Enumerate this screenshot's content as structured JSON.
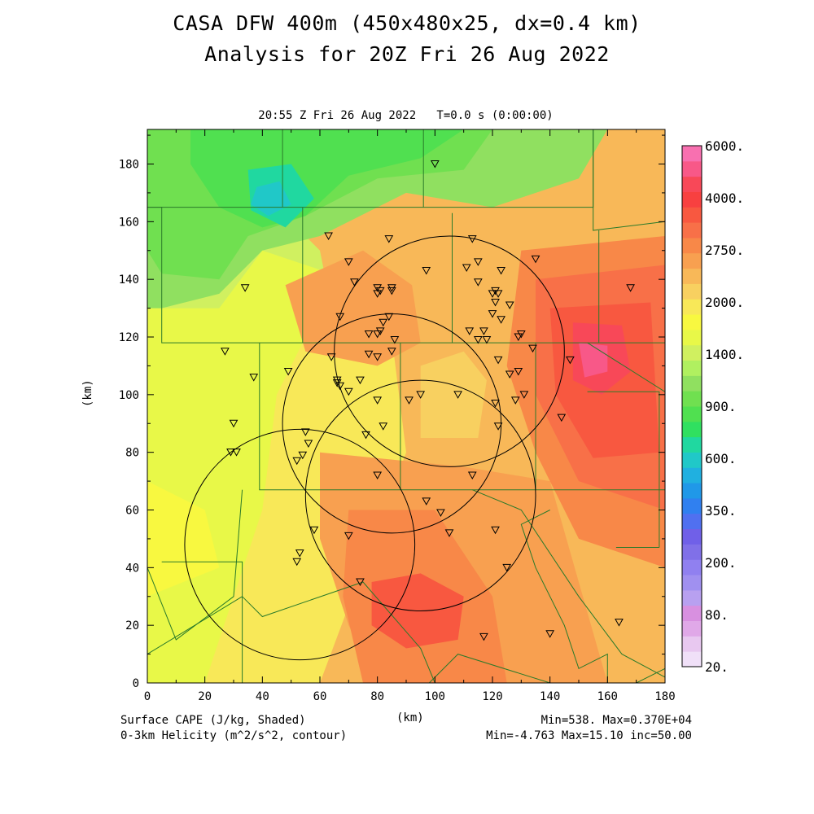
{
  "title_line1": "CASA DFW 400m (450x480x25, dx=0.4 km)",
  "title_line2": "Analysis for 20Z Fri 26 Aug 2022",
  "subtitle": "20:55 Z Fri 26 Aug 2022   T=0.0 s (0:00:00)",
  "x_axis_label": "(km)",
  "y_axis_label": "(km)",
  "footer": {
    "left_line1": "Surface CAPE (J/kg, Shaded)",
    "left_line2": "0-3km Helicity (m^2/s^2, contour)",
    "right_line1": "Min=538. Max=0.370E+04",
    "right_line2": "Min=-4.763 Max=15.10 inc=50.00"
  },
  "x_ticks": [
    "0",
    "20",
    "40",
    "60",
    "80",
    "100",
    "120",
    "140",
    "160",
    "180"
  ],
  "y_ticks": [
    "0",
    "20",
    "40",
    "60",
    "80",
    "100",
    "120",
    "140",
    "160",
    "180"
  ],
  "colorbar": {
    "labels": [
      "6000.",
      "4000.",
      "2750.",
      "2000.",
      "1400.",
      "900.",
      "600.",
      "350.",
      "200.",
      "80.",
      "20."
    ],
    "colors": [
      "#f0e0f8",
      "#e8c8f0",
      "#e0a8e8",
      "#d890e0",
      "#b8a0f0",
      "#a090f0",
      "#9080f0",
      "#8070e8",
      "#7060e8",
      "#5070f0",
      "#3080f0",
      "#2098e8",
      "#20b0e0",
      "#20c8c8",
      "#20d8a0",
      "#30e060",
      "#50e050",
      "#70e050",
      "#90e060",
      "#b0f060",
      "#d0f060",
      "#e8f848",
      "#f8f840",
      "#f8e858",
      "#f8d060",
      "#f8b858",
      "#f8a050",
      "#f88848",
      "#f87048",
      "#f85840",
      "#f84040",
      "#f84858",
      "#f85888",
      "#f870b0"
    ]
  },
  "map_data": {
    "x_range": [
      0,
      180
    ],
    "y_range": [
      0,
      192
    ],
    "cape_regions": [
      {
        "color": "#f8b858",
        "pts": [
          [
            0,
            0
          ],
          [
            180,
            0
          ],
          [
            180,
            192
          ],
          [
            0,
            192
          ]
        ]
      },
      {
        "color": "#d0f060",
        "pts": [
          [
            0,
            0
          ],
          [
            30,
            0
          ],
          [
            55,
            25
          ],
          [
            75,
            60
          ],
          [
            70,
            100
          ],
          [
            60,
            150
          ],
          [
            40,
            170
          ],
          [
            0,
            165
          ]
        ]
      },
      {
        "color": "#e8f848",
        "pts": [
          [
            0,
            0
          ],
          [
            45,
            0
          ],
          [
            65,
            30
          ],
          [
            80,
            70
          ],
          [
            75,
            110
          ],
          [
            70,
            140
          ],
          [
            40,
            150
          ],
          [
            25,
            130
          ],
          [
            0,
            130
          ]
        ]
      },
      {
        "color": "#f8e858",
        "pts": [
          [
            20,
            0
          ],
          [
            60,
            0
          ],
          [
            75,
            40
          ],
          [
            90,
            80
          ],
          [
            85,
            120
          ],
          [
            60,
            130
          ],
          [
            45,
            100
          ],
          [
            40,
            60
          ]
        ]
      },
      {
        "color": "#f8d060",
        "pts": [
          [
            95,
            85
          ],
          [
            115,
            85
          ],
          [
            118,
            105
          ],
          [
            110,
            115
          ],
          [
            95,
            110
          ]
        ]
      },
      {
        "color": "#90e060",
        "pts": [
          [
            0,
            192
          ],
          [
            160,
            192
          ],
          [
            150,
            175
          ],
          [
            120,
            165
          ],
          [
            90,
            170
          ],
          [
            60,
            155
          ],
          [
            40,
            150
          ],
          [
            25,
            135
          ],
          [
            5,
            130
          ],
          [
            0,
            130
          ]
        ]
      },
      {
        "color": "#70e050",
        "pts": [
          [
            0,
            192
          ],
          [
            120,
            192
          ],
          [
            110,
            178
          ],
          [
            80,
            175
          ],
          [
            55,
            162
          ],
          [
            35,
            155
          ],
          [
            25,
            140
          ],
          [
            5,
            142
          ],
          [
            0,
            150
          ]
        ]
      },
      {
        "color": "#50e050",
        "pts": [
          [
            15,
            192
          ],
          [
            110,
            192
          ],
          [
            95,
            182
          ],
          [
            70,
            176
          ],
          [
            55,
            162
          ],
          [
            40,
            158
          ],
          [
            25,
            165
          ],
          [
            15,
            180
          ]
        ]
      },
      {
        "color": "#20d8a0",
        "pts": [
          [
            35,
            178
          ],
          [
            50,
            180
          ],
          [
            58,
            168
          ],
          [
            48,
            158
          ],
          [
            36,
            164
          ]
        ]
      },
      {
        "color": "#20c8c8",
        "pts": [
          [
            38,
            172
          ],
          [
            46,
            174
          ],
          [
            50,
            166
          ],
          [
            42,
            162
          ],
          [
            36,
            166
          ]
        ]
      },
      {
        "color": "#f8a050",
        "pts": [
          [
            48,
            138
          ],
          [
            75,
            150
          ],
          [
            92,
            138
          ],
          [
            95,
            118
          ],
          [
            80,
            110
          ],
          [
            55,
            115
          ]
        ]
      },
      {
        "color": "#f8a050",
        "pts": [
          [
            60,
            80
          ],
          [
            110,
            75
          ],
          [
            140,
            70
          ],
          [
            160,
            0
          ],
          [
            80,
            0
          ],
          [
            70,
            20
          ],
          [
            60,
            50
          ]
        ]
      },
      {
        "color": "#f88848",
        "pts": [
          [
            70,
            60
          ],
          [
            100,
            60
          ],
          [
            120,
            30
          ],
          [
            125,
            0
          ],
          [
            75,
            0
          ],
          [
            68,
            30
          ]
        ]
      },
      {
        "color": "#f88848",
        "pts": [
          [
            130,
            150
          ],
          [
            180,
            155
          ],
          [
            180,
            40
          ],
          [
            150,
            50
          ],
          [
            135,
            80
          ],
          [
            125,
            110
          ]
        ]
      },
      {
        "color": "#f87048",
        "pts": [
          [
            135,
            140
          ],
          [
            180,
            145
          ],
          [
            180,
            60
          ],
          [
            150,
            70
          ],
          [
            135,
            100
          ]
        ]
      },
      {
        "color": "#f85840",
        "pts": [
          [
            140,
            130
          ],
          [
            175,
            132
          ],
          [
            178,
            80
          ],
          [
            155,
            78
          ],
          [
            142,
            100
          ]
        ]
      },
      {
        "color": "#f85840",
        "pts": [
          [
            78,
            35
          ],
          [
            95,
            38
          ],
          [
            110,
            30
          ],
          [
            108,
            15
          ],
          [
            90,
            12
          ],
          [
            78,
            20
          ]
        ]
      },
      {
        "color": "#f84858",
        "pts": [
          [
            148,
            125
          ],
          [
            165,
            124
          ],
          [
            168,
            108
          ],
          [
            158,
            100
          ],
          [
            148,
            105
          ]
        ]
      },
      {
        "color": "#f85888",
        "pts": [
          [
            150,
            118
          ],
          [
            160,
            117
          ],
          [
            160,
            108
          ],
          [
            152,
            106
          ]
        ]
      },
      {
        "color": "#e8f848",
        "pts": [
          [
            0,
            0
          ],
          [
            0,
            25
          ],
          [
            10,
            20
          ],
          [
            20,
            0
          ]
        ]
      },
      {
        "color": "#f8f840",
        "pts": [
          [
            0,
            30
          ],
          [
            0,
            70
          ],
          [
            20,
            60
          ],
          [
            25,
            40
          ]
        ]
      }
    ],
    "county_lines": [
      [
        [
          0,
          165
        ],
        [
          155,
          165
        ],
        [
          155,
          192
        ]
      ],
      [
        [
          0,
          165
        ],
        [
          5,
          165
        ],
        [
          5,
          118
        ],
        [
          180,
          118
        ]
      ],
      [
        [
          47,
          192
        ],
        [
          47,
          165
        ]
      ],
      [
        [
          96,
          192
        ],
        [
          96,
          165
        ]
      ],
      [
        [
          54,
          165
        ],
        [
          54,
          118
        ]
      ],
      [
        [
          106,
          163
        ],
        [
          106,
          118
        ]
      ],
      [
        [
          155,
          192
        ],
        [
          155,
          157
        ],
        [
          180,
          160
        ]
      ],
      [
        [
          157,
          157
        ],
        [
          157,
          118
        ]
      ],
      [
        [
          39,
          118
        ],
        [
          39,
          67
        ],
        [
          180,
          67
        ]
      ],
      [
        [
          88,
          118
        ],
        [
          88,
          67
        ]
      ],
      [
        [
          135,
          118
        ],
        [
          135,
          67
        ]
      ],
      [
        [
          153,
          118
        ],
        [
          180,
          101
        ]
      ],
      [
        [
          153,
          101
        ],
        [
          178,
          101
        ],
        [
          178,
          47
        ]
      ],
      [
        [
          180,
          0
        ],
        [
          180,
          2
        ],
        [
          165,
          10
        ],
        [
          150,
          30
        ],
        [
          130,
          60
        ],
        [
          113,
          67
        ]
      ],
      [
        [
          0,
          0
        ],
        [
          0,
          40
        ],
        [
          10,
          15
        ],
        [
          30,
          30
        ],
        [
          33,
          67
        ]
      ],
      [
        [
          33,
          0
        ],
        [
          33,
          42
        ],
        [
          5,
          42
        ]
      ],
      [
        [
          0,
          10
        ],
        [
          33,
          30
        ]
      ],
      [
        [
          33,
          30
        ],
        [
          40,
          23
        ],
        [
          75,
          35
        ],
        [
          95,
          12
        ],
        [
          100,
          0
        ]
      ],
      [
        [
          98,
          0
        ],
        [
          108,
          10
        ],
        [
          140,
          0
        ]
      ],
      [
        [
          160,
          0
        ],
        [
          160,
          10
        ],
        [
          150,
          5
        ],
        [
          145,
          20
        ],
        [
          135,
          40
        ],
        [
          130,
          55
        ],
        [
          140,
          60
        ]
      ],
      [
        [
          163,
          47
        ],
        [
          178,
          47
        ]
      ],
      [
        [
          170,
          0
        ],
        [
          180,
          5
        ]
      ]
    ],
    "radar_circles": [
      {
        "cx": 105,
        "cy": 115,
        "r": 40
      },
      {
        "cx": 85,
        "cy": 90,
        "r": 38
      },
      {
        "cx": 95,
        "cy": 65,
        "r": 40
      },
      {
        "cx": 53,
        "cy": 48,
        "r": 40
      }
    ],
    "stations": [
      [
        100,
        180
      ],
      [
        63,
        155
      ],
      [
        84,
        154
      ],
      [
        113,
        154
      ],
      [
        70,
        146
      ],
      [
        111,
        144
      ],
      [
        115,
        146
      ],
      [
        123,
        143
      ],
      [
        135,
        147
      ],
      [
        97,
        143
      ],
      [
        72,
        139
      ],
      [
        115,
        139
      ],
      [
        80,
        137
      ],
      [
        85,
        137
      ],
      [
        80,
        135
      ],
      [
        81,
        136
      ],
      [
        85,
        136
      ],
      [
        121,
        136
      ],
      [
        120,
        135
      ],
      [
        122,
        135
      ],
      [
        121,
        132
      ],
      [
        126,
        131
      ],
      [
        168,
        137
      ],
      [
        34,
        137
      ],
      [
        120,
        128
      ],
      [
        67,
        127
      ],
      [
        84,
        127
      ],
      [
        82,
        125
      ],
      [
        123,
        126
      ],
      [
        112,
        122
      ],
      [
        117,
        122
      ],
      [
        115,
        119
      ],
      [
        118,
        119
      ],
      [
        77,
        121
      ],
      [
        80,
        121
      ],
      [
        81,
        122
      ],
      [
        130,
        121
      ],
      [
        129,
        120
      ],
      [
        86,
        119
      ],
      [
        134,
        116
      ],
      [
        85,
        115
      ],
      [
        64,
        113
      ],
      [
        77,
        114
      ],
      [
        80,
        113
      ],
      [
        126,
        107
      ],
      [
        129,
        108
      ],
      [
        147,
        112
      ],
      [
        122,
        112
      ],
      [
        49,
        108
      ],
      [
        37,
        106
      ],
      [
        27,
        115
      ],
      [
        66,
        105
      ],
      [
        66,
        104
      ],
      [
        74,
        105
      ],
      [
        70,
        101
      ],
      [
        67,
        103
      ],
      [
        108,
        100
      ],
      [
        95,
        100
      ],
      [
        91,
        98
      ],
      [
        80,
        98
      ],
      [
        121,
        97
      ],
      [
        128,
        98
      ],
      [
        131,
        100
      ],
      [
        144,
        92
      ],
      [
        82,
        89
      ],
      [
        30,
        90
      ],
      [
        55,
        87
      ],
      [
        76,
        86
      ],
      [
        122,
        89
      ],
      [
        56,
        83
      ],
      [
        31,
        80
      ],
      [
        29,
        80
      ],
      [
        54,
        79
      ],
      [
        52,
        77
      ],
      [
        113,
        72
      ],
      [
        80,
        72
      ],
      [
        97,
        63
      ],
      [
        102,
        59
      ],
      [
        121,
        53
      ],
      [
        105,
        52
      ],
      [
        70,
        51
      ],
      [
        58,
        53
      ],
      [
        53,
        45
      ],
      [
        52,
        42
      ],
      [
        125,
        40
      ],
      [
        74,
        35
      ],
      [
        140,
        17
      ],
      [
        164,
        21
      ],
      [
        117,
        16
      ]
    ]
  }
}
